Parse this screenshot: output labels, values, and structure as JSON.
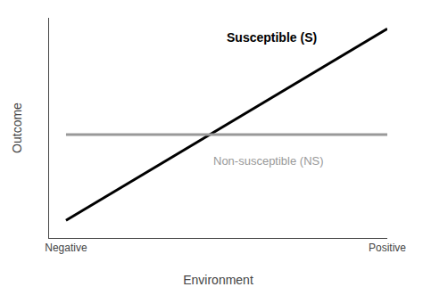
{
  "chart_data": {
    "type": "line",
    "xlabel": "Environment",
    "ylabel": "Outcome",
    "x": [
      0.5,
      10.0
    ],
    "series": [
      {
        "color": "#000000",
        "values": [
          0.8,
          9.5
        ]
      },
      {
        "color": "#999999",
        "values": [
          4.7,
          4.7
        ]
      }
    ],
    "annotations": [
      {
        "text": "Susceptible (S)",
        "x": 5.2,
        "y": 8.7,
        "color": "#000000"
      },
      {
        "text": "Non-susceptible (NS)",
        "x": 4.8,
        "y": 3.9,
        "color": "#999999"
      }
    ],
    "xlim": [
      0,
      10
    ],
    "ylim": [
      0,
      10
    ],
    "xticks": [
      {
        "value": 0.5,
        "label": "Negative"
      },
      {
        "value": 10.0,
        "label": "Positive"
      }
    ],
    "yticks": [],
    "tick_labels": "x",
    "grid": false
  }
}
